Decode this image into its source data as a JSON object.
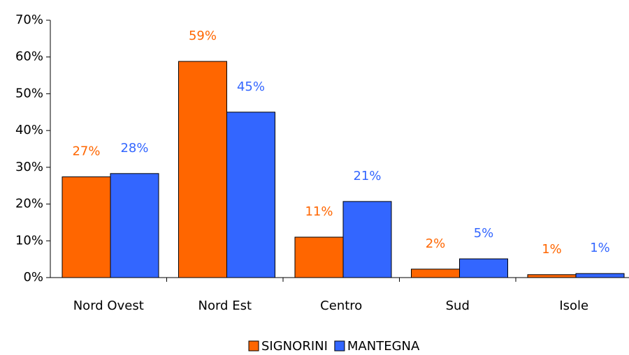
{
  "chart_data": {
    "type": "bar",
    "categories": [
      "Nord Ovest",
      "Nord Est",
      "Centro",
      "Sud",
      "Isole"
    ],
    "series": [
      {
        "name": "SIGNORINI",
        "color": "#ff6600",
        "values": [
          27.4,
          58.8,
          11.0,
          2.3,
          0.8
        ],
        "value_labels": [
          "27%",
          "59%",
          "11%",
          "2%",
          "1%"
        ]
      },
      {
        "name": "MANTEGNA",
        "color": "#3366ff",
        "values": [
          28.3,
          45.0,
          20.7,
          5.1,
          1.1
        ],
        "value_labels": [
          "28%",
          "45%",
          "21%",
          "5%",
          "1%"
        ]
      }
    ],
    "ylim": [
      0,
      70
    ],
    "yticks": [
      {
        "value": 0,
        "label": "0%"
      },
      {
        "value": 10,
        "label": "10%"
      },
      {
        "value": 20,
        "label": "20%"
      },
      {
        "value": 30,
        "label": "30%"
      },
      {
        "value": 40,
        "label": "40%"
      },
      {
        "value": 50,
        "label": "50%"
      },
      {
        "value": 60,
        "label": "60%"
      },
      {
        "value": 70,
        "label": "70%"
      }
    ],
    "legend": "bottom"
  }
}
